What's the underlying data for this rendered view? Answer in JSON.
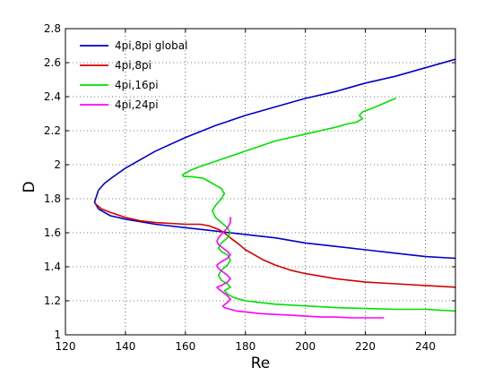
{
  "chart_data": {
    "type": "line",
    "xlabel": "Re",
    "ylabel": "D",
    "xlim": [
      120,
      250
    ],
    "ylim": [
      1,
      2.8
    ],
    "xticks": [
      120,
      140,
      160,
      180,
      200,
      220,
      240
    ],
    "yticks": [
      1,
      1.2,
      1.4,
      1.6,
      1.8,
      2,
      2.2,
      2.4,
      2.6,
      2.8
    ],
    "xtick_labels": [
      "120",
      "140",
      "160",
      "180",
      "200",
      "220",
      "240"
    ],
    "ytick_labels": [
      "1",
      "1.2",
      "1.4",
      "1.6",
      "1.8",
      "2",
      "2.2",
      "2.4",
      "2.6",
      "2.8"
    ],
    "grid": true,
    "legend_position": "top-left",
    "series": [
      {
        "name": "4pi,8pi global",
        "color": "#0000c8",
        "x": [
          250,
          240,
          230,
          220,
          210,
          200,
          190,
          180,
          170,
          160,
          150,
          145,
          140,
          136,
          133,
          131,
          129.7,
          131,
          135,
          140,
          150,
          160,
          170,
          180,
          190,
          200,
          210,
          220,
          230,
          240,
          250
        ],
        "y": [
          2.62,
          2.57,
          2.52,
          2.48,
          2.43,
          2.39,
          2.34,
          2.29,
          2.23,
          2.16,
          2.08,
          2.03,
          1.98,
          1.93,
          1.89,
          1.85,
          1.78,
          1.74,
          1.7,
          1.68,
          1.65,
          1.63,
          1.61,
          1.59,
          1.57,
          1.54,
          1.52,
          1.5,
          1.48,
          1.46,
          1.45
        ]
      },
      {
        "name": "4pi,8pi",
        "color": "#d40000",
        "x": [
          130,
          132,
          135,
          140,
          145,
          150,
          155,
          160,
          165,
          168,
          171,
          173,
          175,
          178,
          180,
          183,
          186,
          190,
          195,
          200,
          210,
          220,
          230,
          240,
          250
        ],
        "y": [
          1.77,
          1.74,
          1.72,
          1.69,
          1.67,
          1.66,
          1.655,
          1.65,
          1.65,
          1.64,
          1.62,
          1.6,
          1.57,
          1.53,
          1.5,
          1.47,
          1.44,
          1.41,
          1.38,
          1.36,
          1.33,
          1.31,
          1.3,
          1.29,
          1.28
        ]
      },
      {
        "name": "4pi,16pi",
        "color": "#00e000",
        "x": [
          230,
          226,
          222,
          219,
          218,
          219,
          217,
          214,
          210,
          205,
          200,
          195,
          190,
          185,
          180,
          175,
          170,
          165,
          162,
          159,
          159.5,
          162,
          166,
          168,
          170,
          172,
          173,
          172,
          170,
          169,
          170,
          172,
          174,
          175,
          174,
          172,
          171,
          172,
          174,
          175,
          174,
          172,
          171,
          172,
          174,
          175,
          174,
          173,
          174,
          176,
          180,
          185,
          190,
          200,
          210,
          220,
          230,
          240,
          250
        ],
        "y": [
          2.39,
          2.36,
          2.33,
          2.31,
          2.29,
          2.27,
          2.25,
          2.24,
          2.22,
          2.2,
          2.18,
          2.16,
          2.14,
          2.11,
          2.08,
          2.05,
          2.02,
          1.99,
          1.97,
          1.94,
          1.93,
          1.93,
          1.92,
          1.9,
          1.88,
          1.86,
          1.83,
          1.8,
          1.76,
          1.73,
          1.69,
          1.66,
          1.63,
          1.6,
          1.57,
          1.54,
          1.51,
          1.49,
          1.47,
          1.44,
          1.41,
          1.38,
          1.35,
          1.32,
          1.3,
          1.28,
          1.27,
          1.26,
          1.24,
          1.22,
          1.2,
          1.19,
          1.18,
          1.17,
          1.16,
          1.155,
          1.15,
          1.15,
          1.14
        ]
      },
      {
        "name": "4pi,24pi",
        "color": "#ff00ff",
        "x": [
          175,
          175,
          174,
          173,
          172,
          171,
          170.5,
          171,
          172.5,
          174,
          175,
          174,
          172,
          170.5,
          171,
          172.5,
          174,
          175,
          174,
          172,
          170.5,
          171,
          172.5,
          174,
          175,
          174,
          172.5,
          173,
          175,
          177,
          180,
          185,
          190,
          195,
          200,
          205,
          210,
          215,
          220,
          226
        ],
        "y": [
          1.69,
          1.66,
          1.63,
          1.61,
          1.59,
          1.57,
          1.55,
          1.53,
          1.51,
          1.49,
          1.47,
          1.45,
          1.43,
          1.41,
          1.39,
          1.37,
          1.35,
          1.33,
          1.31,
          1.29,
          1.28,
          1.27,
          1.25,
          1.23,
          1.21,
          1.19,
          1.17,
          1.16,
          1.15,
          1.14,
          1.135,
          1.125,
          1.12,
          1.115,
          1.11,
          1.105,
          1.105,
          1.1,
          1.1,
          1.1
        ]
      }
    ]
  }
}
